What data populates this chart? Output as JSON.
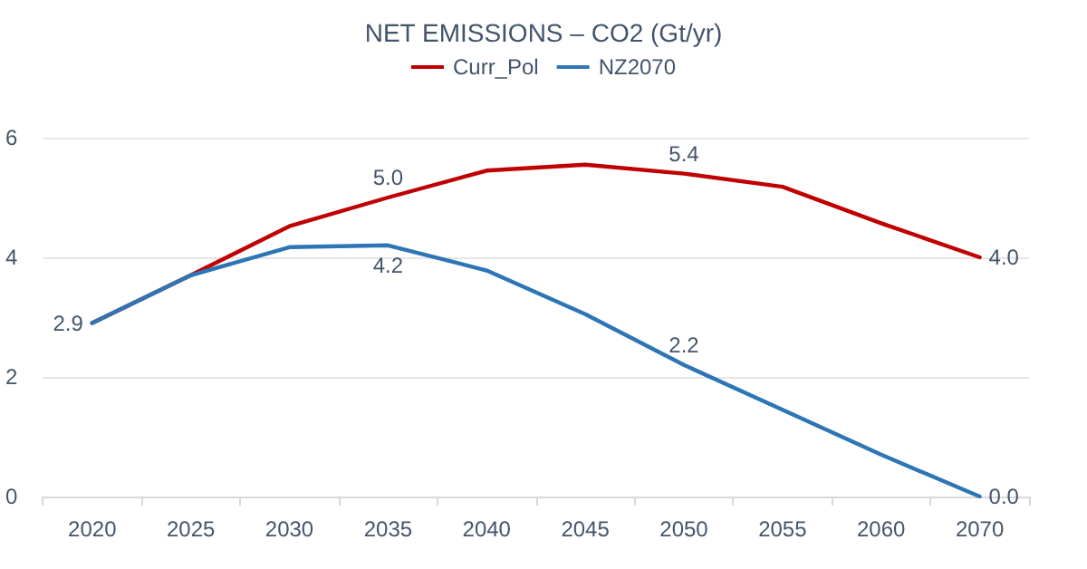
{
  "chart_data": {
    "type": "line",
    "title": "NET EMISSIONS – CO2 (Gt/yr)",
    "categories": [
      "2020",
      "2025",
      "2030",
      "2035",
      "2040",
      "2045",
      "2050",
      "2055",
      "2060",
      "2070"
    ],
    "series": [
      {
        "name": "Curr_Pol",
        "color": "#c00000",
        "values": [
          2.9,
          3.7,
          4.52,
          5.0,
          5.45,
          5.55,
          5.4,
          5.18,
          4.57,
          4.0
        ],
        "value_labels": [
          null,
          null,
          null,
          "5.0",
          null,
          null,
          "5.4",
          null,
          null,
          "4.0"
        ]
      },
      {
        "name": "NZ2070",
        "color": "#2e75b6",
        "values": [
          2.9,
          3.7,
          4.17,
          4.2,
          3.78,
          3.05,
          2.2,
          1.45,
          0.7,
          0.0
        ],
        "value_labels": [
          "2.9",
          null,
          null,
          "4.2",
          null,
          null,
          "2.2",
          null,
          null,
          "0.0"
        ]
      }
    ],
    "ylim": [
      0,
      6
    ],
    "yticks": [
      0,
      2,
      4,
      6
    ],
    "grid": "y",
    "legend": "top",
    "marker": "none",
    "line_style": "solid"
  }
}
